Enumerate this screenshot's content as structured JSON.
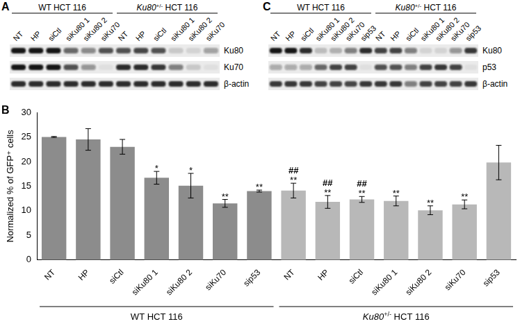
{
  "blots": [
    {
      "label": "A",
      "groups": [
        {
          "name": [
            {
              "text": "WT HCT 116"
            }
          ],
          "lanes": [
            "NT",
            "HP",
            "siCtl",
            "siKu80 1",
            "siKu80 2",
            "siKu70"
          ]
        },
        {
          "name": [
            {
              "text": "Ku80",
              "italic": true
            },
            {
              "text": "+/-",
              "sup": true
            },
            {
              "text": " HCT 116"
            }
          ],
          "lanes": [
            "NT",
            "HP",
            "siCtl",
            "siKu80 1",
            "siKu80 2",
            "siKu70"
          ]
        }
      ],
      "rows": [
        {
          "name": "Ku80",
          "bands": [
            1.0,
            1.0,
            1.0,
            0.6,
            0.45,
            0.7,
            0.7,
            0.75,
            0.7,
            0.15,
            0.1,
            0.35
          ]
        },
        {
          "name": "Ku70",
          "bands": [
            1.0,
            1.0,
            1.0,
            0.7,
            0.4,
            0.05,
            0.9,
            0.9,
            0.85,
            0.5,
            0.15,
            0.05
          ]
        },
        {
          "name": "β-actin",
          "bands": [
            0.9,
            0.9,
            0.9,
            0.9,
            0.9,
            0.9,
            0.9,
            0.9,
            0.9,
            0.9,
            0.9,
            0.9
          ]
        }
      ]
    },
    {
      "label": "C",
      "groups": [
        {
          "name": [
            {
              "text": "WT HCT 116"
            }
          ],
          "lanes": [
            "NT",
            "HP",
            "siCtl",
            "siKu80 1",
            "siKu80 2",
            "siKu70",
            "sip53"
          ]
        },
        {
          "name": [
            {
              "text": "Ku80",
              "italic": true
            },
            {
              "text": "+/-",
              "sup": true
            },
            {
              "text": " HCT 116"
            }
          ],
          "lanes": [
            "NT",
            "HP",
            "siCtl",
            "siKu80 1",
            "siKu80 2",
            "siKu70",
            "sip53"
          ]
        }
      ],
      "rows": [
        {
          "name": "Ku80",
          "bands": [
            1.0,
            1.0,
            0.9,
            0.2,
            0.25,
            0.5,
            0.9,
            0.8,
            0.8,
            0.5,
            0.1,
            0.1,
            0.4,
            0.85
          ]
        },
        {
          "name": "p53",
          "bands": [
            0.3,
            0.3,
            0.3,
            0.6,
            0.8,
            0.8,
            0.05,
            0.7,
            0.7,
            0.5,
            0.8,
            0.85,
            0.8,
            0.05
          ]
        },
        {
          "name": "β-actin",
          "bands": [
            0.85,
            0.85,
            0.85,
            0.8,
            0.8,
            0.75,
            0.85,
            0.85,
            0.85,
            0.5,
            0.8,
            0.8,
            0.8,
            0.85
          ]
        }
      ]
    }
  ],
  "chart_data": {
    "type": "bar",
    "title": "B",
    "ylabel": "Normalized % of GFP⁺ cells",
    "categories": [
      "NT",
      "HP",
      "siCtl",
      "siKu80 1",
      "siKu80 2",
      "siKu70",
      "sip53",
      "NT",
      "HP",
      "siCtl",
      "siKu80 1",
      "siKu80 2",
      "siKu70",
      "sip53"
    ],
    "values": [
      25,
      24.5,
      23,
      16.7,
      15.1,
      11.5,
      14,
      14.1,
      11.8,
      12.3,
      12,
      10.1,
      11.3,
      19.8
    ],
    "errors": [
      0.1,
      2.2,
      1.5,
      1.3,
      2.5,
      0.8,
      0.2,
      1.5,
      1.3,
      0.6,
      1.0,
      0.9,
      0.9,
      3.5
    ],
    "colors": [
      "#8c8c8c",
      "#8c8c8c",
      "#8c8c8c",
      "#8c8c8c",
      "#8c8c8c",
      "#8c8c8c",
      "#8c8c8c",
      "#b8b8b8",
      "#b8b8b8",
      "#b8b8b8",
      "#b8b8b8",
      "#b8b8b8",
      "#b8b8b8",
      "#b8b8b8"
    ],
    "stars": [
      null,
      null,
      null,
      "*",
      "*",
      "**",
      "**",
      "**",
      "**",
      "**",
      "**",
      "**",
      "**",
      null
    ],
    "hashes": [
      null,
      null,
      null,
      null,
      null,
      null,
      null,
      "##",
      "##",
      "##",
      null,
      null,
      null,
      null
    ],
    "groups": [
      {
        "name": [
          {
            "text": "WT HCT 116"
          }
        ],
        "size": 7
      },
      {
        "name": [
          {
            "text": "Ku80",
            "italic": true
          },
          {
            "text": "+/-",
            "sup": true
          },
          {
            "text": " HCT 116"
          }
        ],
        "size": 7
      }
    ],
    "ylim": [
      0,
      30
    ],
    "yticks": [
      0,
      5,
      10,
      15,
      20,
      25,
      30
    ],
    "grid": false
  }
}
